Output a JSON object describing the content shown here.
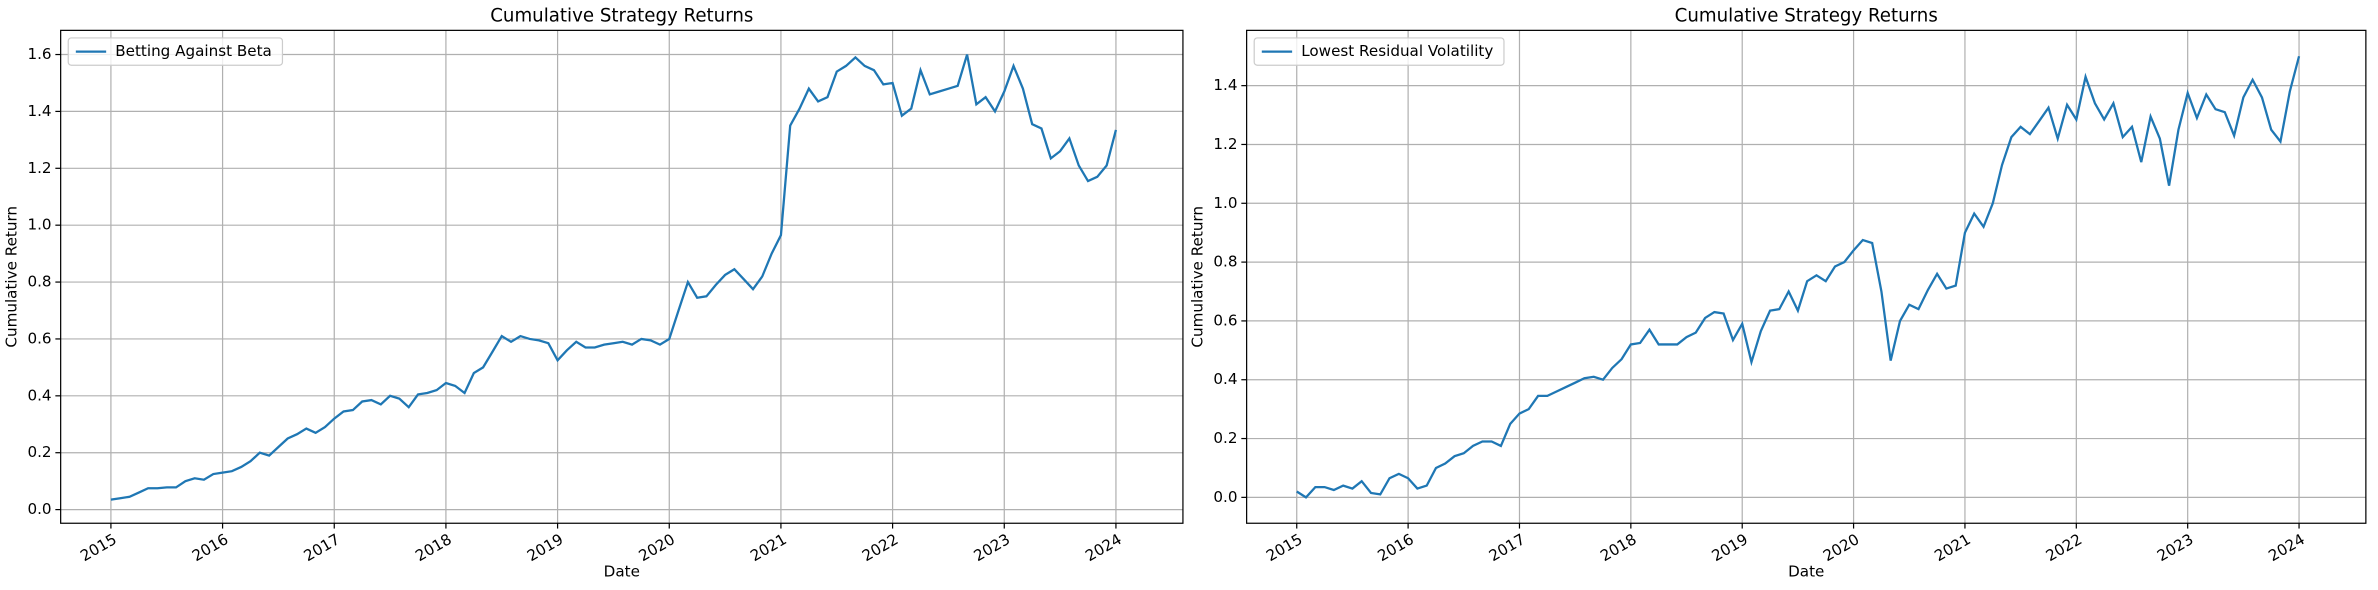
{
  "chart_data": [
    {
      "type": "line",
      "title": "Cumulative Strategy Returns",
      "xlabel": "Date",
      "ylabel": "Cumulative Return",
      "grid": true,
      "legend": "upper left",
      "xlim": [
        2014.55,
        2024.6
      ],
      "xticks": [
        2015,
        2016,
        2017,
        2018,
        2019,
        2020,
        2021,
        2022,
        2023,
        2024
      ],
      "ylim": [
        -0.048,
        1.685
      ],
      "yticks": [
        {
          "value": 0,
          "label": "0.0"
        },
        0.2,
        0.4,
        0.6,
        0.8,
        {
          "value": 1,
          "label": "1.0"
        },
        1.2,
        1.4,
        1.6
      ],
      "x": [
        2015,
        2015.083,
        2015.167,
        2015.25,
        2015.333,
        2015.417,
        2015.5,
        2015.583,
        2015.667,
        2015.75,
        2015.833,
        2015.917,
        2016,
        2016.083,
        2016.167,
        2016.25,
        2016.333,
        2016.417,
        2016.5,
        2016.583,
        2016.667,
        2016.75,
        2016.833,
        2016.917,
        2017,
        2017.083,
        2017.167,
        2017.25,
        2017.333,
        2017.417,
        2017.5,
        2017.583,
        2017.667,
        2017.75,
        2017.833,
        2017.917,
        2018,
        2018.083,
        2018.167,
        2018.25,
        2018.333,
        2018.417,
        2018.5,
        2018.583,
        2018.667,
        2018.75,
        2018.833,
        2018.917,
        2019,
        2019.083,
        2019.167,
        2019.25,
        2019.333,
        2019.417,
        2019.5,
        2019.583,
        2019.667,
        2019.75,
        2019.833,
        2019.917,
        2020,
        2020.083,
        2020.167,
        2020.25,
        2020.333,
        2020.417,
        2020.5,
        2020.583,
        2020.667,
        2020.75,
        2020.833,
        2020.917,
        2021,
        2021.083,
        2021.167,
        2021.25,
        2021.333,
        2021.417,
        2021.5,
        2021.583,
        2021.667,
        2021.75,
        2021.833,
        2021.917,
        2022,
        2022.083,
        2022.167,
        2022.25,
        2022.333,
        2022.417,
        2022.5,
        2022.583,
        2022.667,
        2022.75,
        2022.833,
        2022.917,
        2023,
        2023.083,
        2023.167,
        2023.25,
        2023.333,
        2023.417,
        2023.5,
        2023.583,
        2023.667,
        2023.75,
        2023.833,
        2023.917,
        2024
      ],
      "series": [
        {
          "name": "Betting Against Beta",
          "color": "#1f77b4",
          "values": [
            0.035,
            0.04,
            0.045,
            0.06,
            0.075,
            0.075,
            0.078,
            0.078,
            0.1,
            0.11,
            0.105,
            0.125,
            0.13,
            0.135,
            0.15,
            0.17,
            0.2,
            0.19,
            0.22,
            0.25,
            0.265,
            0.285,
            0.27,
            0.29,
            0.32,
            0.345,
            0.35,
            0.38,
            0.385,
            0.37,
            0.4,
            0.39,
            0.36,
            0.405,
            0.41,
            0.42,
            0.445,
            0.435,
            0.41,
            0.48,
            0.5,
            0.555,
            0.61,
            0.59,
            0.61,
            0.6,
            0.595,
            0.585,
            0.525,
            0.56,
            0.59,
            0.57,
            0.57,
            0.58,
            0.585,
            0.59,
            0.58,
            0.6,
            0.595,
            0.58,
            0.6,
            0.7,
            0.8,
            0.745,
            0.75,
            0.79,
            0.825,
            0.845,
            0.81,
            0.775,
            0.82,
            0.9,
            0.965,
            1.35,
            1.41,
            1.48,
            1.435,
            1.45,
            1.54,
            1.56,
            1.59,
            1.56,
            1.545,
            1.495,
            1.5,
            1.385,
            1.41,
            1.545,
            1.46,
            1.47,
            1.48,
            1.49,
            1.6,
            1.425,
            1.45,
            1.4,
            1.47,
            1.56,
            1.48,
            1.355,
            1.34,
            1.235,
            1.26,
            1.305,
            1.21,
            1.155,
            1.17,
            1.21,
            1.335
          ]
        }
      ]
    },
    {
      "type": "line",
      "title": "Cumulative Strategy Returns",
      "xlabel": "Date",
      "ylabel": "Cumulative Return",
      "grid": true,
      "legend": "upper left",
      "xlim": [
        2014.55,
        2024.6
      ],
      "xticks": [
        2015,
        2016,
        2017,
        2018,
        2019,
        2020,
        2021,
        2022,
        2023,
        2024
      ],
      "ylim": [
        -0.088,
        1.588
      ],
      "yticks": [
        {
          "value": 0,
          "label": "0.0"
        },
        0.2,
        0.4,
        0.6,
        0.8,
        {
          "value": 1,
          "label": "1.0"
        },
        1.2,
        1.4
      ],
      "x": [
        2015,
        2015.083,
        2015.167,
        2015.25,
        2015.333,
        2015.417,
        2015.5,
        2015.583,
        2015.667,
        2015.75,
        2015.833,
        2015.917,
        2016,
        2016.083,
        2016.167,
        2016.25,
        2016.333,
        2016.417,
        2016.5,
        2016.583,
        2016.667,
        2016.75,
        2016.833,
        2016.917,
        2017,
        2017.083,
        2017.167,
        2017.25,
        2017.333,
        2017.417,
        2017.5,
        2017.583,
        2017.667,
        2017.75,
        2017.833,
        2017.917,
        2018,
        2018.083,
        2018.167,
        2018.25,
        2018.333,
        2018.417,
        2018.5,
        2018.583,
        2018.667,
        2018.75,
        2018.833,
        2018.917,
        2019,
        2019.083,
        2019.167,
        2019.25,
        2019.333,
        2019.417,
        2019.5,
        2019.583,
        2019.667,
        2019.75,
        2019.833,
        2019.917,
        2020,
        2020.083,
        2020.167,
        2020.25,
        2020.333,
        2020.417,
        2020.5,
        2020.583,
        2020.667,
        2020.75,
        2020.833,
        2020.917,
        2021,
        2021.083,
        2021.167,
        2021.25,
        2021.333,
        2021.417,
        2021.5,
        2021.583,
        2021.667,
        2021.75,
        2021.833,
        2021.917,
        2022,
        2022.083,
        2022.167,
        2022.25,
        2022.333,
        2022.417,
        2022.5,
        2022.583,
        2022.667,
        2022.75,
        2022.833,
        2022.917,
        2023,
        2023.083,
        2023.167,
        2023.25,
        2023.333,
        2023.417,
        2023.5,
        2023.583,
        2023.667,
        2023.75,
        2023.833,
        2023.917,
        2024
      ],
      "series": [
        {
          "name": "Lowest Residual Volatility",
          "color": "#1f77b4",
          "values": [
            0.02,
            0.0,
            0.035,
            0.035,
            0.025,
            0.04,
            0.03,
            0.055,
            0.015,
            0.01,
            0.065,
            0.08,
            0.065,
            0.03,
            0.04,
            0.1,
            0.115,
            0.14,
            0.15,
            0.175,
            0.19,
            0.19,
            0.175,
            0.25,
            0.285,
            0.3,
            0.345,
            0.345,
            0.36,
            0.375,
            0.39,
            0.405,
            0.41,
            0.4,
            0.44,
            0.47,
            0.52,
            0.525,
            0.57,
            0.52,
            0.52,
            0.52,
            0.545,
            0.56,
            0.61,
            0.63,
            0.625,
            0.535,
            0.59,
            0.46,
            0.565,
            0.635,
            0.64,
            0.7,
            0.635,
            0.735,
            0.755,
            0.735,
            0.785,
            0.8,
            0.84,
            0.875,
            0.865,
            0.7,
            0.465,
            0.6,
            0.655,
            0.64,
            0.705,
            0.76,
            0.71,
            0.72,
            0.9,
            0.965,
            0.92,
            1.0,
            1.13,
            1.225,
            1.26,
            1.235,
            1.28,
            1.325,
            1.22,
            1.335,
            1.285,
            1.43,
            1.34,
            1.285,
            1.34,
            1.225,
            1.26,
            1.14,
            1.295,
            1.22,
            1.06,
            1.25,
            1.375,
            1.29,
            1.37,
            1.32,
            1.31,
            1.23,
            1.36,
            1.42,
            1.36,
            1.25,
            1.21,
            1.38,
            1.5
          ]
        }
      ]
    }
  ]
}
